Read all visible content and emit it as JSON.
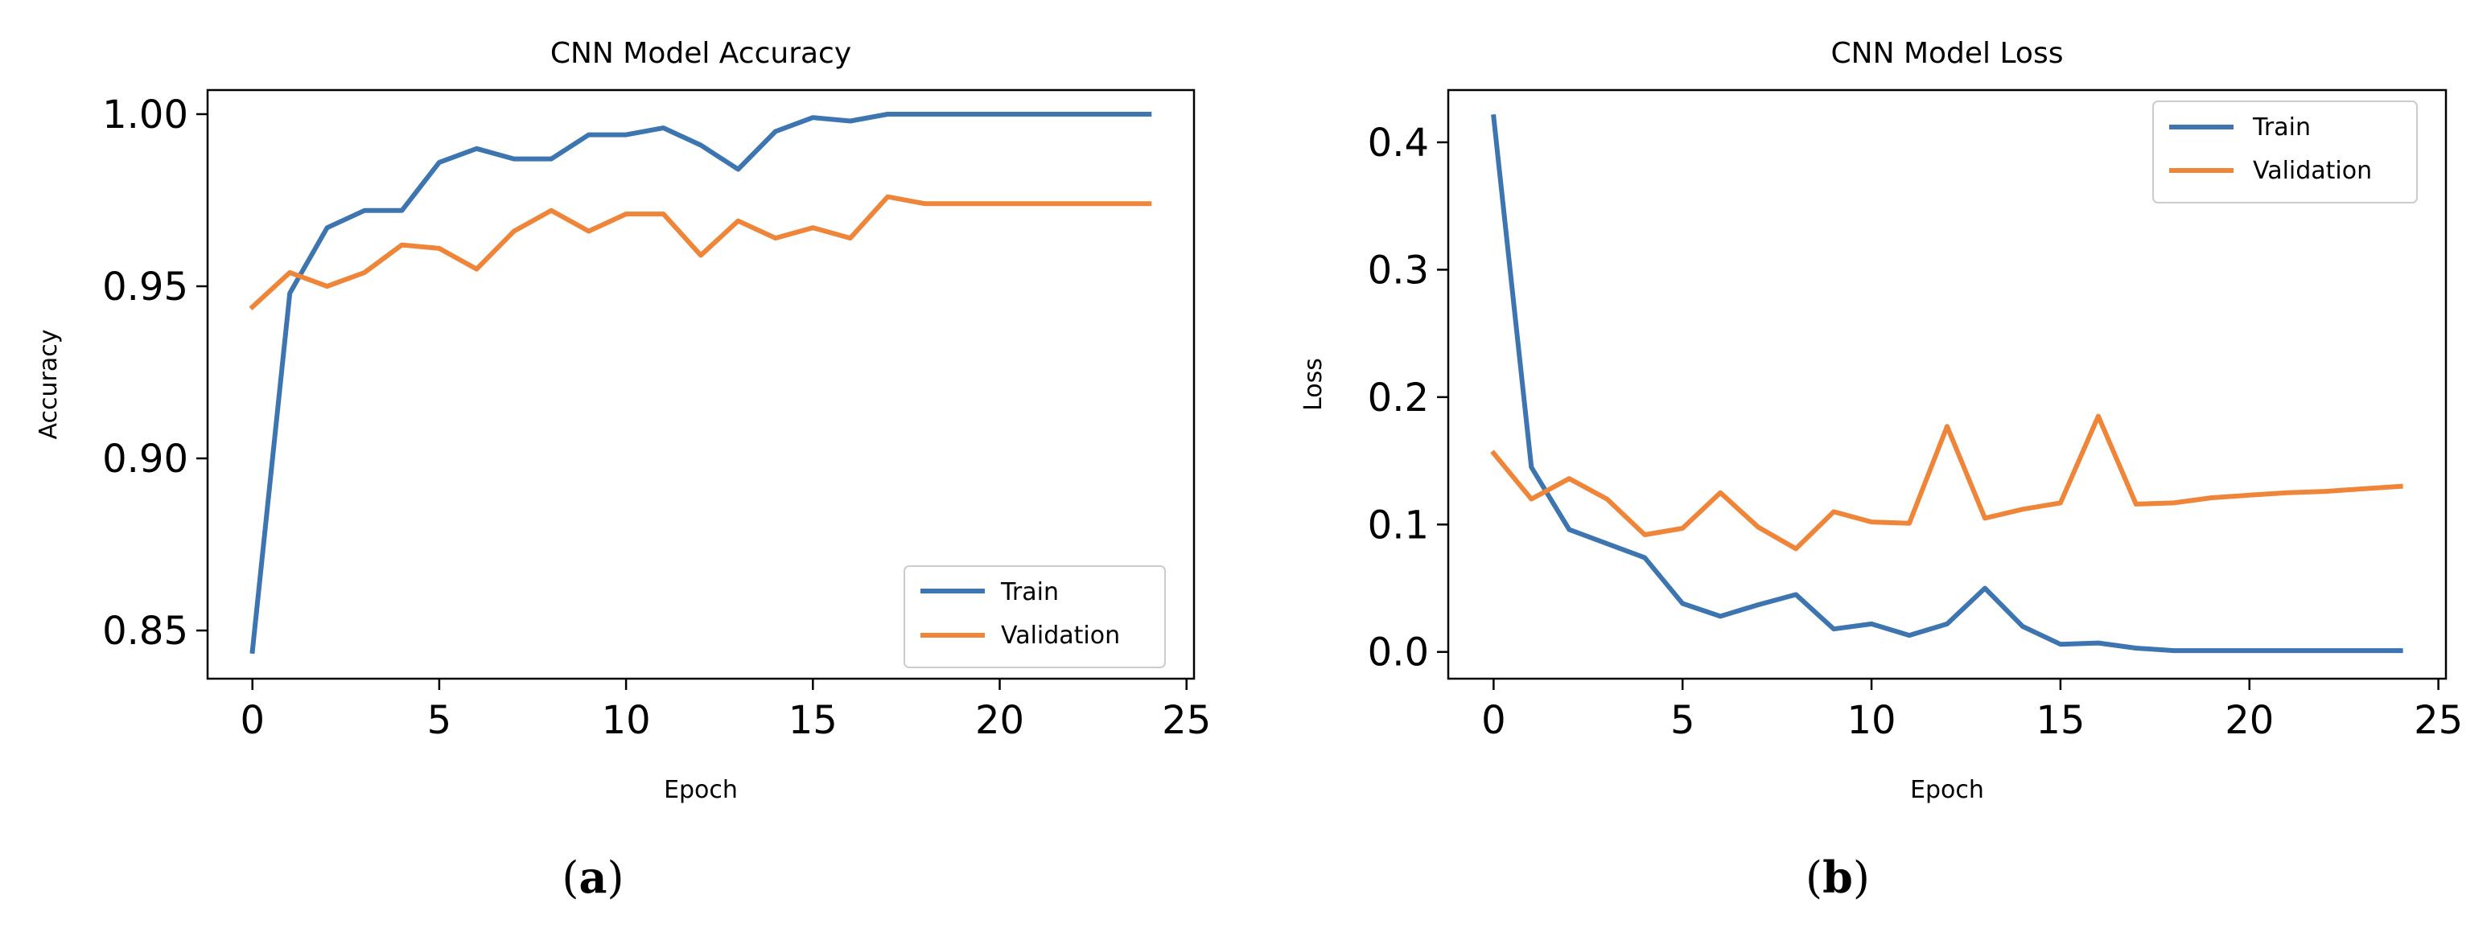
{
  "chart_data": [
    {
      "type": "line",
      "title": "CNN Model Accuracy",
      "xlabel": "Epoch",
      "ylabel": "Accuracy",
      "xlim": [
        -1.2,
        25.2
      ],
      "ylim": [
        0.836,
        1.007
      ],
      "xticks": [
        0,
        5,
        10,
        15,
        20,
        25
      ],
      "xtick_labels": [
        "0",
        "5",
        "10",
        "15",
        "20",
        "25"
      ],
      "yticks": [
        0.85,
        0.9,
        0.95,
        1.0
      ],
      "ytick_labels": [
        "0.85",
        "0.90",
        "0.95",
        "1.00"
      ],
      "legend_position": "lower-right",
      "caption_letter": "a",
      "caption_open": "(",
      "caption_close": ")",
      "x": [
        0,
        1,
        2,
        3,
        4,
        5,
        6,
        7,
        8,
        9,
        10,
        11,
        12,
        13,
        14,
        15,
        16,
        17,
        18,
        19,
        20,
        21,
        22,
        23,
        24
      ],
      "series": [
        {
          "name": "Train",
          "color": "#3d75b1",
          "values": [
            0.844,
            0.948,
            0.967,
            0.972,
            0.972,
            0.986,
            0.99,
            0.987,
            0.987,
            0.994,
            0.994,
            0.996,
            0.991,
            0.984,
            0.995,
            0.999,
            0.998,
            1.0,
            1.0,
            1.0,
            1.0,
            1.0,
            1.0,
            1.0,
            1.0
          ]
        },
        {
          "name": "Validation",
          "color": "#ee8538",
          "values": [
            0.944,
            0.954,
            0.95,
            0.954,
            0.962,
            0.961,
            0.955,
            0.966,
            0.972,
            0.966,
            0.971,
            0.971,
            0.959,
            0.969,
            0.964,
            0.967,
            0.964,
            0.976,
            0.974,
            0.974,
            0.974,
            0.974,
            0.974,
            0.974,
            0.974
          ]
        }
      ]
    },
    {
      "type": "line",
      "title": "CNN Model Loss",
      "xlabel": "Epoch",
      "ylabel": "Loss",
      "xlim": [
        -1.2,
        25.2
      ],
      "ylim": [
        -0.021,
        0.441
      ],
      "xticks": [
        0,
        5,
        10,
        15,
        20,
        25
      ],
      "xtick_labels": [
        "0",
        "5",
        "10",
        "15",
        "20",
        "25"
      ],
      "yticks": [
        0.0,
        0.1,
        0.2,
        0.3,
        0.4
      ],
      "ytick_labels": [
        "0.0",
        "0.1",
        "0.2",
        "0.3",
        "0.4"
      ],
      "legend_position": "top-right",
      "caption_letter": "b",
      "caption_open": "(",
      "caption_close": ")",
      "x": [
        0,
        1,
        2,
        3,
        4,
        5,
        6,
        7,
        8,
        9,
        10,
        11,
        12,
        13,
        14,
        15,
        16,
        17,
        18,
        19,
        20,
        21,
        22,
        23,
        24
      ],
      "series": [
        {
          "name": "Train",
          "color": "#3d75b1",
          "values": [
            0.42,
            0.145,
            0.096,
            0.085,
            0.074,
            0.038,
            0.028,
            0.037,
            0.045,
            0.018,
            0.022,
            0.013,
            0.022,
            0.05,
            0.02,
            0.006,
            0.007,
            0.003,
            0.001,
            0.001,
            0.001,
            0.001,
            0.001,
            0.001,
            0.001
          ]
        },
        {
          "name": "Validation",
          "color": "#ee8538",
          "values": [
            0.156,
            0.12,
            0.136,
            0.12,
            0.092,
            0.097,
            0.125,
            0.098,
            0.081,
            0.11,
            0.102,
            0.101,
            0.177,
            0.105,
            0.112,
            0.117,
            0.185,
            0.116,
            0.117,
            0.121,
            0.123,
            0.125,
            0.126,
            0.128,
            0.13
          ]
        }
      ]
    }
  ]
}
